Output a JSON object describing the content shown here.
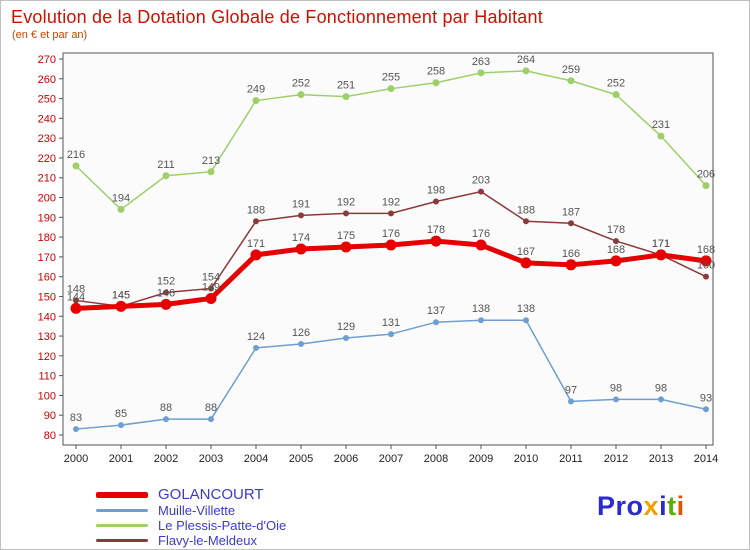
{
  "title": {
    "text": "Evolution de la Dotation Globale de Fonctionnement par Habitant",
    "subtitle": "(en € et par an)",
    "color": "#cc1100"
  },
  "chart_data": {
    "type": "line",
    "x": [
      "2000",
      "2001",
      "2002",
      "2003",
      "2004",
      "2005",
      "2006",
      "2007",
      "2008",
      "2009",
      "2010",
      "2011",
      "2012",
      "2013",
      "2014"
    ],
    "ylim": [
      80,
      270
    ],
    "ytick_step": 10,
    "grid": false,
    "legend_position": "bottom-left",
    "axis_color": "#cc0000",
    "xlabel_color": "#222222",
    "label_color": "#555555",
    "series": [
      {
        "name": "GOLANCOURT",
        "color": "#e60000",
        "width": 5,
        "marker_r": 5.5,
        "values": [
          144,
          145,
          146,
          149,
          171,
          174,
          175,
          176,
          178,
          176,
          167,
          166,
          168,
          171,
          168
        ]
      },
      {
        "name": "Muille-Villette",
        "color": "#6f9fd0",
        "width": 1.5,
        "marker_r": 3,
        "values": [
          83,
          85,
          88,
          88,
          124,
          126,
          129,
          131,
          137,
          138,
          138,
          97,
          98,
          98,
          93
        ]
      },
      {
        "name": "Le Plessis-Patte-d'Oie",
        "color": "#9ed06a",
        "width": 1.5,
        "marker_r": 3.5,
        "values": [
          216,
          194,
          211,
          213,
          249,
          252,
          251,
          255,
          258,
          263,
          264,
          259,
          252,
          231,
          206
        ]
      },
      {
        "name": "Flavy-le-Meldeux",
        "color": "#8b3a3a",
        "width": 1.5,
        "marker_r": 3,
        "values": [
          148,
          145,
          152,
          154,
          188,
          191,
          192,
          192,
          198,
          203,
          188,
          187,
          178,
          171,
          160
        ]
      }
    ]
  },
  "legend": {
    "text_color": "#3a3ad0"
  },
  "logo": {
    "letters": [
      {
        "ch": "P",
        "color": "#2b2bcf"
      },
      {
        "ch": "r",
        "color": "#2b2bcf"
      },
      {
        "ch": "o",
        "color": "#2b2bcf"
      },
      {
        "ch": "x",
        "color": "#f0a000"
      },
      {
        "ch": "i",
        "color": "#2b2bcf"
      },
      {
        "ch": "t",
        "color": "#58b000"
      },
      {
        "ch": "i",
        "color": "#e05500"
      }
    ]
  }
}
